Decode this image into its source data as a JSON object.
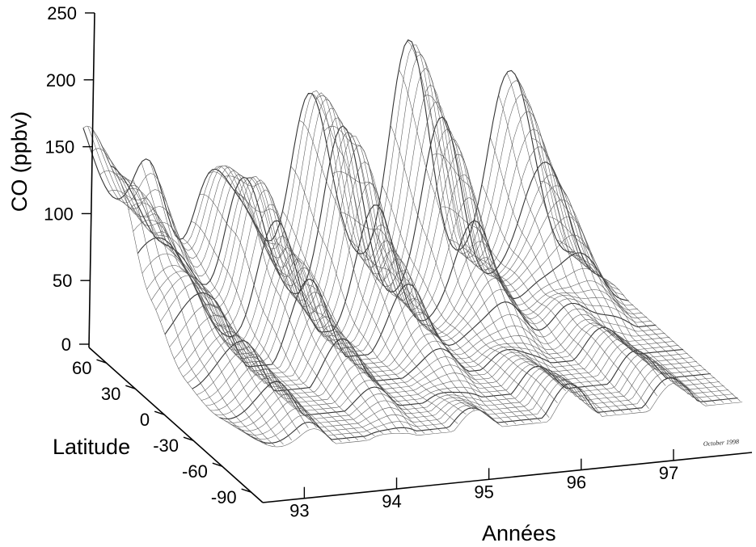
{
  "chart_data": {
    "type": "surface",
    "title": "",
    "zlabel": "CO (ppbv)",
    "ylabel": "Latitude",
    "xlabel": "Années",
    "z_ticks": [
      "0",
      "50",
      "100",
      "150",
      "200",
      "250"
    ],
    "zlim": [
      0,
      250
    ],
    "latitude_ticks": [
      "60",
      "30",
      "0",
      "-30",
      "-60",
      "-90"
    ],
    "latitude_range": [
      -90,
      60
    ],
    "year_ticks": [
      "93",
      "94",
      "95",
      "96",
      "97"
    ],
    "series": [
      {
        "name": "",
        "x": [
          92.5,
          93,
          93.5,
          94,
          94.5,
          95,
          95.5,
          96,
          96.5,
          97,
          97.7
        ],
        "values": [
          175,
          195,
          60,
          195,
          60,
          195,
          60,
          195,
          60,
          170,
          40
        ]
      }
    ],
    "latitude_profile": {
      "latitude": [
        60,
        30,
        0,
        -30,
        -60,
        -90
      ],
      "co_peak": [
        190,
        150,
        90,
        60,
        50,
        45
      ]
    },
    "credit": "October 1998"
  }
}
